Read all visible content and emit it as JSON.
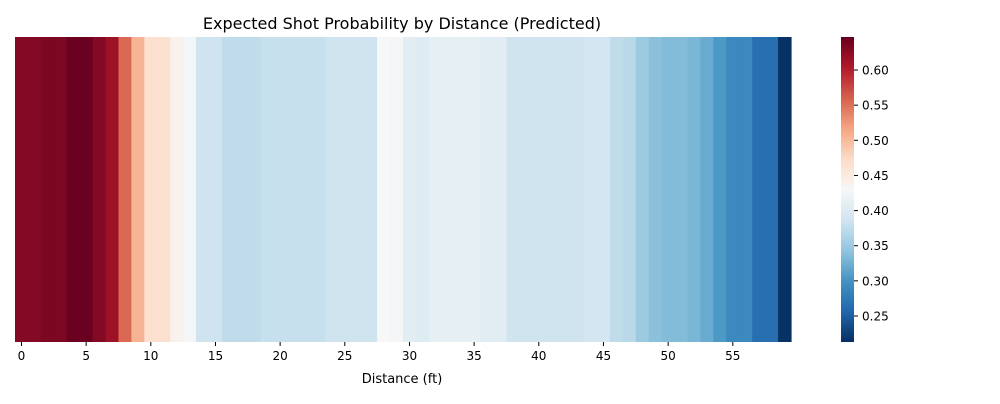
{
  "chart_data": {
    "type": "heatmap",
    "title": "Expected Shot Probability by Distance (Predicted)",
    "xlabel": "Distance (ft)",
    "ylabel": "",
    "x": [
      0,
      1,
      2,
      3,
      4,
      5,
      6,
      7,
      8,
      9,
      10,
      11,
      12,
      13,
      14,
      15,
      16,
      17,
      18,
      19,
      20,
      21,
      22,
      23,
      24,
      25,
      26,
      27,
      28,
      29,
      30,
      31,
      32,
      33,
      34,
      35,
      36,
      37,
      38,
      39,
      40,
      41,
      42,
      43,
      44,
      45,
      46,
      47,
      48,
      49,
      50,
      51,
      52,
      53,
      54,
      55,
      56,
      57,
      58,
      59
    ],
    "xticks": [
      0,
      5,
      10,
      15,
      20,
      25,
      30,
      35,
      40,
      45,
      50,
      55
    ],
    "values": [
      0.63,
      0.63,
      0.635,
      0.635,
      0.645,
      0.645,
      0.63,
      0.615,
      0.555,
      0.505,
      0.465,
      0.465,
      0.44,
      0.425,
      0.385,
      0.385,
      0.375,
      0.375,
      0.375,
      0.38,
      0.38,
      0.38,
      0.38,
      0.38,
      0.385,
      0.385,
      0.385,
      0.385,
      0.43,
      0.425,
      0.405,
      0.4,
      0.41,
      0.41,
      0.41,
      0.41,
      0.405,
      0.405,
      0.385,
      0.385,
      0.385,
      0.385,
      0.385,
      0.385,
      0.39,
      0.39,
      0.375,
      0.37,
      0.35,
      0.34,
      0.335,
      0.335,
      0.33,
      0.32,
      0.305,
      0.29,
      0.29,
      0.265,
      0.265,
      0.215
    ],
    "colorbar": {
      "min": 0.213,
      "max": 0.647,
      "ticks": [
        0.25,
        0.3,
        0.35,
        0.4,
        0.45,
        0.5,
        0.55,
        0.6
      ],
      "tick_labels": [
        "0.25",
        "0.30",
        "0.35",
        "0.40",
        "0.45",
        "0.50",
        "0.55",
        "0.60"
      ],
      "colormap": "RdBu_r"
    },
    "grid": false
  }
}
